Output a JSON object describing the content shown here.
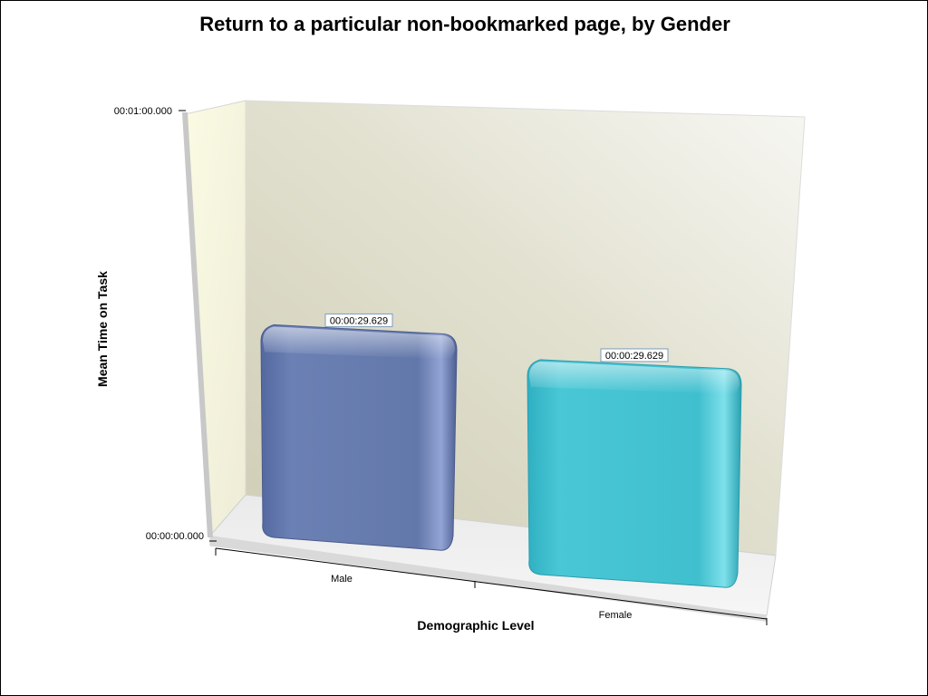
{
  "chart_data": {
    "type": "bar",
    "title": "Return to a particular non-bookmarked page, by Gender",
    "xlabel": "Demographic Level",
    "ylabel": "Mean Time on Task",
    "categories": [
      "Male",
      "Female"
    ],
    "values": [
      29.629,
      29.629
    ],
    "value_labels": [
      "00:00:29.629",
      "00:00:29.629"
    ],
    "ylim": [
      0,
      60
    ],
    "y_tick_labels": [
      "00:00:00.000",
      "00:01:00.000"
    ],
    "series_colors": [
      "#6378aa",
      "#3fbfcf"
    ],
    "grid": false,
    "legend": "none"
  }
}
